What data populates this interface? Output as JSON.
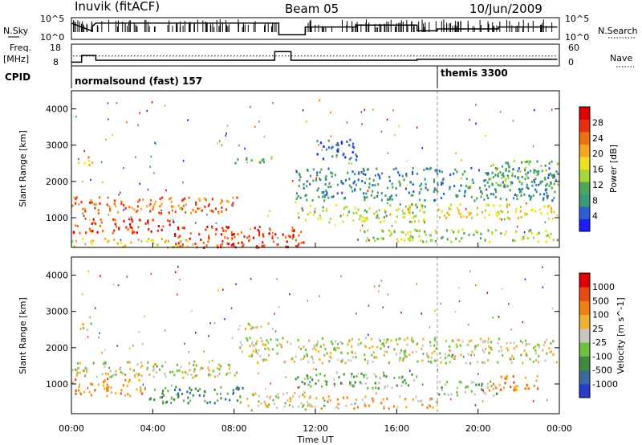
{
  "header": {
    "station": "Inuvik (fitACF)",
    "beam": "Beam 05",
    "date": "10/Jun/2009"
  },
  "strip_labels": {
    "nsky": "N.Sky",
    "nsky_tick_hi": "10^5",
    "nsky_tick_lo": "10^0",
    "nsearch": "N.Search",
    "nsearch_tick_hi": "10^5",
    "nsearch_tick_lo": "10^0",
    "freq_line1": "Freq.",
    "freq_line2": "[MHz]",
    "freq_tick_hi": "18",
    "freq_tick_lo": "8",
    "nave": "Nave",
    "nave_tick_hi": "60",
    "nave_tick_lo": "0",
    "cpid": "CPID"
  },
  "modes": [
    {
      "label": "normalsound (fast) 157",
      "start_hr": 0
    },
    {
      "label": "themis 3300",
      "start_hr": 18
    }
  ],
  "xaxis": {
    "label": "Time UT",
    "ticks": [
      "00:00",
      "04:00",
      "08:00",
      "12:00",
      "16:00",
      "20:00",
      "00:00"
    ]
  },
  "chart_data": [
    {
      "type": "heatmap",
      "title": "",
      "xlabel": "",
      "ylabel": "Slant Range [km]",
      "xlim": [
        0,
        24
      ],
      "ylim": [
        180,
        4500
      ],
      "yticks": [
        1000,
        2000,
        3000,
        4000
      ],
      "colorbar": {
        "label": "Power [dB]",
        "ticks": [
          "4",
          "8",
          "12",
          "16",
          "20",
          "24",
          "28"
        ],
        "colors": [
          "#1c1cff",
          "#2a5fd6",
          "#3a9a7a",
          "#4fa55a",
          "#a9d63a",
          "#f0e020",
          "#f5a623",
          "#f07010",
          "#e83010",
          "#e00000"
        ]
      },
      "regions": [
        {
          "t0": 0.0,
          "t1": 8.2,
          "r0": 1150,
          "r1": 1600,
          "level": 7
        },
        {
          "t0": 0.0,
          "t1": 5.0,
          "r0": 600,
          "r1": 1000,
          "level": 8
        },
        {
          "t0": 5.0,
          "t1": 11.5,
          "r0": 200,
          "r1": 800,
          "level": 8
        },
        {
          "t0": 0.0,
          "t1": 6.0,
          "r0": 200,
          "r1": 450,
          "level": 5
        },
        {
          "t0": 0.3,
          "t1": 1.0,
          "r0": 2450,
          "r1": 2750,
          "level": 6
        },
        {
          "t0": 8.0,
          "t1": 10.0,
          "r0": 2500,
          "r1": 2700,
          "level": 3
        },
        {
          "t0": 11.0,
          "t1": 23.9,
          "r0": 1500,
          "r1": 2400,
          "level": 2
        },
        {
          "t0": 11.0,
          "t1": 17.5,
          "r0": 900,
          "r1": 1400,
          "level": 4
        },
        {
          "t0": 18.0,
          "t1": 23.9,
          "r0": 1000,
          "r1": 1400,
          "level": 5
        },
        {
          "t0": 14.0,
          "t1": 23.9,
          "r0": 350,
          "r1": 700,
          "level": 4
        },
        {
          "t0": 20.5,
          "t1": 23.9,
          "r0": 1900,
          "r1": 2600,
          "level": 3
        },
        {
          "t0": 12.0,
          "t1": 14.0,
          "r0": 2600,
          "r1": 3200,
          "level": 1
        }
      ]
    },
    {
      "type": "heatmap",
      "title": "",
      "xlabel": "Time UT",
      "ylabel": "Slant Range [km]",
      "xlim": [
        0,
        24
      ],
      "ylim": [
        180,
        4500
      ],
      "yticks": [
        1000,
        2000,
        3000,
        4000
      ],
      "colorbar": {
        "label": "Velocity [m s^-1]",
        "ticks": [
          "1000",
          "500",
          "100",
          "25",
          "-25",
          "-100",
          "-500",
          "-1000"
        ],
        "colors": [
          "#2a3cd0",
          "#3a6aa0",
          "#3f8a3f",
          "#6ec040",
          "#c8c8c0",
          "#f0b030",
          "#f08010",
          "#ea4a10",
          "#e00000"
        ]
      },
      "regions": [
        {
          "t0": 0.0,
          "t1": 8.2,
          "r0": 1200,
          "r1": 1650,
          "level": 4
        },
        {
          "t0": 8.2,
          "t1": 23.9,
          "r0": 1600,
          "r1": 2300,
          "level": 4
        },
        {
          "t0": 0.3,
          "t1": 1.0,
          "r0": 2450,
          "r1": 2750,
          "level": 4
        },
        {
          "t0": 0.0,
          "t1": 3.5,
          "r0": 700,
          "r1": 1150,
          "level": 6
        },
        {
          "t0": 3.5,
          "t1": 8.5,
          "r0": 500,
          "r1": 950,
          "level": 2
        },
        {
          "t0": 8.5,
          "t1": 11.5,
          "r0": 300,
          "r1": 800,
          "level": 4
        },
        {
          "t0": 11.5,
          "t1": 18.0,
          "r0": 350,
          "r1": 700,
          "level": 5
        },
        {
          "t0": 18.0,
          "t1": 21.0,
          "r0": 700,
          "r1": 1100,
          "level": 3
        },
        {
          "t0": 20.5,
          "t1": 23.0,
          "r0": 850,
          "r1": 1250,
          "level": 6
        },
        {
          "t0": 8.0,
          "t1": 10.0,
          "r0": 2500,
          "r1": 2700,
          "level": 4
        },
        {
          "t0": 11.0,
          "t1": 17.0,
          "r0": 900,
          "r1": 1350,
          "level": 3
        }
      ]
    }
  ],
  "strips": {
    "nsky": [
      [
        0,
        4
      ],
      [
        1.0,
        2
      ],
      [
        1.0,
        3
      ],
      [
        1.2,
        4
      ],
      [
        4.0,
        4
      ],
      [
        8.0,
        4
      ],
      [
        10.2,
        4
      ],
      [
        10.2,
        1
      ],
      [
        11.5,
        1
      ],
      [
        11.5,
        3
      ],
      [
        14.0,
        3
      ],
      [
        14.0,
        3.5
      ],
      [
        17.0,
        3.5
      ],
      [
        17.0,
        2
      ],
      [
        18.0,
        2
      ],
      [
        18.0,
        2.5
      ],
      [
        21.0,
        2.5
      ],
      [
        21.0,
        3
      ],
      [
        23.9,
        3
      ]
    ],
    "freq": [
      [
        0,
        9.5
      ],
      [
        0.5,
        9.5
      ],
      [
        0.5,
        13
      ],
      [
        1.2,
        13
      ],
      [
        1.2,
        10.5
      ],
      [
        10.0,
        10.5
      ],
      [
        10.0,
        15
      ],
      [
        10.8,
        15
      ],
      [
        10.8,
        10.5
      ],
      [
        17.0,
        10.5
      ],
      [
        17.0,
        11
      ],
      [
        23.9,
        11
      ]
    ],
    "nave_level": 28
  }
}
